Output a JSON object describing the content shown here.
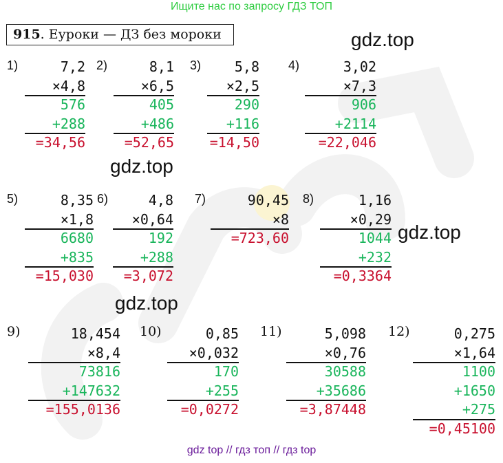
{
  "top_link": "Ищите нас по запросу ГДЗ ТОП",
  "header": {
    "number": "915",
    "title": ". Еуроки — ДЗ без мороки"
  },
  "watermarks": [
    "gdz.top",
    "gdz.top",
    "gdz.top",
    "gdz.top"
  ],
  "problems": [
    {
      "label": "1)",
      "a": "7,2",
      "b": "×4,8",
      "partials": [
        "576",
        "+288"
      ],
      "result": "=34,56"
    },
    {
      "label": "2)",
      "a": "8,1",
      "b": "×6,5",
      "partials": [
        "405",
        "+486"
      ],
      "result": "=52,65"
    },
    {
      "label": "3)",
      "a": "5,8",
      "b": "×2,5",
      "partials": [
        "290",
        "+116"
      ],
      "result": "=14,50"
    },
    {
      "label": "4)",
      "a": "3,02",
      "b": "×7,3",
      "partials": [
        "906",
        "+2114"
      ],
      "result": "=22,046"
    },
    {
      "label": "5)",
      "a": "8,35",
      "b": "×1,8",
      "partials": [
        "6680",
        "+835"
      ],
      "result": "=15,030"
    },
    {
      "label": "6)",
      "a": "4,8",
      "b": "×0,64",
      "partials": [
        "192",
        "+288"
      ],
      "result": "=3,072"
    },
    {
      "label": "7)",
      "a": "90,45",
      "b": "×8",
      "partials": [],
      "result": "=723,60"
    },
    {
      "label": "8)",
      "a": "1,16",
      "b": "×0,29",
      "partials": [
        "1044",
        "+232"
      ],
      "result": "=0,3364"
    },
    {
      "label": "9)",
      "a": "18,454",
      "b": "×8,4",
      "partials": [
        "73816",
        "+147632"
      ],
      "result": "=155,0136"
    },
    {
      "label": "10)",
      "a": "0,85",
      "b": "×0,032",
      "partials": [
        "170",
        "+255"
      ],
      "result": "=0,0272"
    },
    {
      "label": "11)",
      "a": "5,098",
      "b": "×0,76",
      "partials": [
        "30588",
        "+35686"
      ],
      "result": "=3,87448"
    },
    {
      "label": "12)",
      "a": "0,275",
      "b": "×1,64",
      "partials": [
        "1100",
        "+1650",
        "+275"
      ],
      "result": "=0,45100"
    }
  ],
  "footer": "gdz top  //  гдз топ  //  гдз top"
}
